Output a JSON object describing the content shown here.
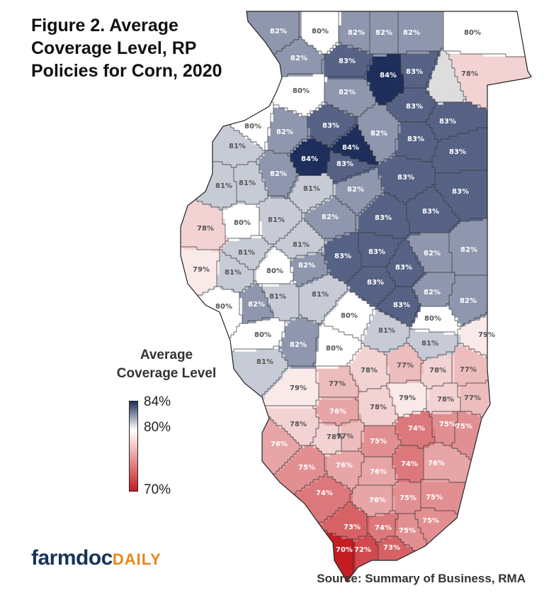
{
  "title": "Figure 2. Average Coverage Level, RP Policies for Corn, 2020",
  "legend": {
    "title": "Average Coverage Level",
    "max_label": "84%",
    "mid_label": "80%",
    "min_label": "70%",
    "colors": {
      "high": "#1f2f5c",
      "mid": "#ffffff",
      "low": "#c41e24",
      "no_data": "#dddddd"
    }
  },
  "counties": [
    {
      "label": "82%"
    },
    {
      "label": "80%"
    },
    {
      "label": "82%"
    },
    {
      "label": "82%"
    },
    {
      "label": "82%"
    },
    {
      "label": "80%"
    },
    {
      "label": "82%"
    },
    {
      "label": "83%"
    },
    {
      "label": "84%"
    },
    {
      "label": "83%"
    },
    {
      "label": "78%"
    },
    {
      "label": ""
    },
    {
      "label": "80%"
    },
    {
      "label": "82%"
    },
    {
      "label": "83%"
    },
    {
      "label": "80%"
    },
    {
      "label": "82%"
    },
    {
      "label": "83%"
    },
    {
      "label": "82%"
    },
    {
      "label": "83%"
    },
    {
      "label": "83%"
    },
    {
      "label": "81%"
    },
    {
      "label": "84%"
    },
    {
      "label": "84%"
    },
    {
      "label": "83%"
    },
    {
      "label": "83%"
    },
    {
      "label": "83%"
    },
    {
      "label": "81%"
    },
    {
      "label": "81%"
    },
    {
      "label": "82%"
    },
    {
      "label": "81%"
    },
    {
      "label": "82%"
    },
    {
      "label": "83%"
    },
    {
      "label": "83%"
    },
    {
      "label": "78%"
    },
    {
      "label": "80%"
    },
    {
      "label": "81%"
    },
    {
      "label": "82%"
    },
    {
      "label": "83%"
    },
    {
      "label": "82%"
    },
    {
      "label": "82%"
    },
    {
      "label": "81%"
    },
    {
      "label": "81%"
    },
    {
      "label": "83%"
    },
    {
      "label": "83%"
    },
    {
      "label": "83%"
    },
    {
      "label": "79%"
    },
    {
      "label": "81%"
    },
    {
      "label": "80%"
    },
    {
      "label": "82%"
    },
    {
      "label": "83%"
    },
    {
      "label": "82%"
    },
    {
      "label": "82%"
    },
    {
      "label": "80%"
    },
    {
      "label": "82%"
    },
    {
      "label": "81%"
    },
    {
      "label": "81%"
    },
    {
      "label": "83%"
    },
    {
      "label": "80%"
    },
    {
      "label": "80%"
    },
    {
      "label": "81%"
    },
    {
      "label": "79%"
    },
    {
      "label": "80%"
    },
    {
      "label": "82%"
    },
    {
      "label": "80%"
    },
    {
      "label": "81%"
    },
    {
      "label": "81%"
    },
    {
      "label": "78%"
    },
    {
      "label": "77%"
    },
    {
      "label": "78%"
    },
    {
      "label": "77%"
    },
    {
      "label": "79%"
    },
    {
      "label": "77%"
    },
    {
      "label": "78%"
    },
    {
      "label": "79%"
    },
    {
      "label": "78%"
    },
    {
      "label": "77%"
    },
    {
      "label": "76%"
    },
    {
      "label": "78%"
    },
    {
      "label": "78%"
    },
    {
      "label": "77%"
    },
    {
      "label": "75%"
    },
    {
      "label": "74%"
    },
    {
      "label": "75%"
    },
    {
      "label": "76%"
    },
    {
      "label": "75%"
    },
    {
      "label": "75%"
    },
    {
      "label": "76%"
    },
    {
      "label": "76%"
    },
    {
      "label": "74%"
    },
    {
      "label": "76%"
    },
    {
      "label": "74%"
    },
    {
      "label": "76%"
    },
    {
      "label": "75%"
    },
    {
      "label": "75%"
    },
    {
      "label": "73%"
    },
    {
      "label": "74%"
    },
    {
      "label": "75%"
    },
    {
      "label": "75%"
    },
    {
      "label": "70%"
    },
    {
      "label": "72%"
    },
    {
      "label": "73%"
    }
  ],
  "logo": {
    "farmdoc": "farmdoc",
    "daily": "DAILY"
  },
  "source": "Source: Summary of Business, RMA"
}
